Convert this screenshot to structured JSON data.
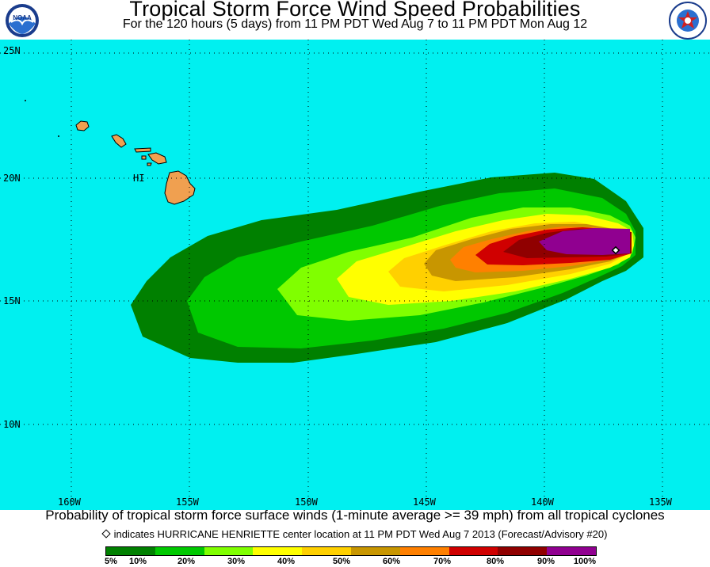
{
  "header": {
    "title": "Tropical Storm Force Wind Speed Probabilities",
    "subtitle": "For the 120 hours (5 days) from 11 PM PDT Wed Aug 7 to 11 PM PDT Mon Aug 12",
    "left_logo_text": "NOAA",
    "right_logo_text": "NATIONAL WEATHER SERVICE"
  },
  "map": {
    "ocean_color": "#00f0f0",
    "land_color": "#f0a050",
    "lat_labels": [
      "25N",
      "20N",
      "15N",
      "10N"
    ],
    "lon_labels": [
      "160W",
      "155W",
      "150W",
      "145W",
      "140W",
      "135W"
    ],
    "place_label": "HI",
    "storm_center_marker": "white diamond"
  },
  "footer": {
    "caption": "Probability of tropical storm force surface winds (1-minute average >= 39 mph) from all tropical cyclones",
    "note": "indicates HURRICANE HENRIETTE center location at 11 PM PDT Wed Aug 7 2013 (Forecast/Advisory #20)"
  },
  "legend": {
    "colors": [
      "#008000",
      "#00c800",
      "#80ff00",
      "#ffff00",
      "#ffd000",
      "#c89600",
      "#ff8000",
      "#d00000",
      "#900000",
      "#900090"
    ],
    "labels": [
      "5%",
      "10%",
      "20%",
      "30%",
      "40%",
      "50%",
      "60%",
      "70%",
      "80%",
      "90%",
      "100%"
    ]
  }
}
